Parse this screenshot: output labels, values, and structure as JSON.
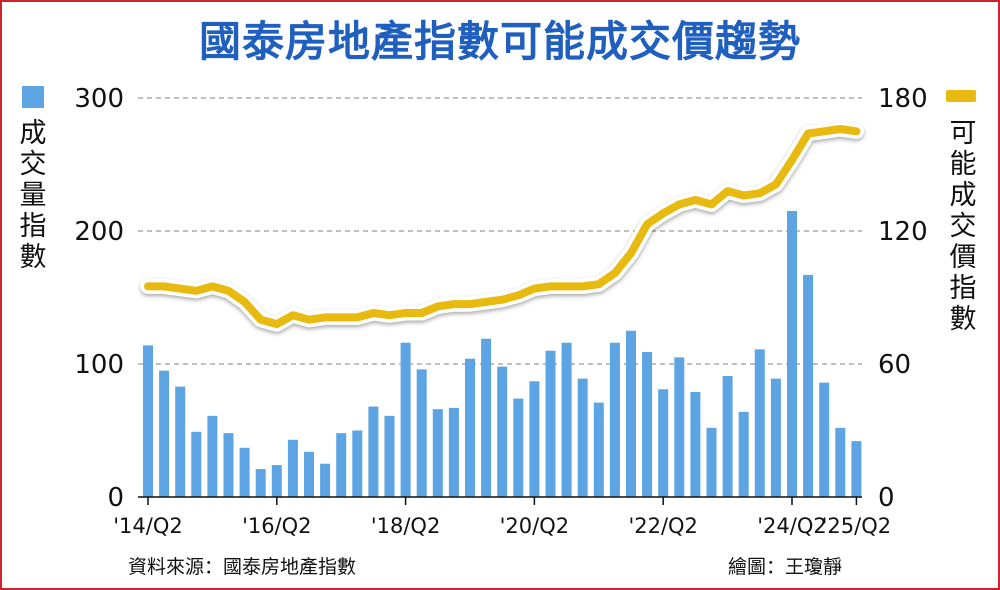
{
  "title": "國泰房地產指數可能成交價趨勢",
  "left_axis_label": "成交量指數",
  "right_axis_label": "可能成交價指數",
  "source_note": "資料來源：國泰房地產指數",
  "credit_note": "繪圖：王瓊靜",
  "colors": {
    "bar": "#5da4e3",
    "line": "#e8b90f",
    "title": "#1f5fbf",
    "grid": "#9a9a9a"
  },
  "chart_data": {
    "type": "bar",
    "series": [
      {
        "axis": "left",
        "type": "bar",
        "values": [
          114,
          95,
          83,
          49,
          61,
          48,
          37,
          21,
          24,
          43,
          34,
          25,
          48,
          50,
          68,
          61,
          116,
          96,
          66,
          67,
          104,
          119,
          98,
          74,
          87,
          110,
          116,
          89,
          71,
          116,
          125,
          109,
          81,
          105,
          79,
          52,
          91,
          64,
          111,
          89,
          215,
          167,
          86,
          52,
          42
        ]
      },
      {
        "axis": "right",
        "type": "line",
        "values": [
          95,
          95,
          94,
          93,
          95,
          93,
          88,
          80,
          78,
          82,
          80,
          81,
          81,
          81,
          83,
          82,
          83,
          83,
          86,
          87,
          87,
          88,
          89,
          91,
          94,
          95,
          95,
          95,
          96,
          101,
          110,
          123,
          128,
          132,
          134,
          132,
          138,
          136,
          137,
          141,
          152,
          164,
          165,
          166,
          165
        ]
      }
    ],
    "x_tick_labels": [
      "'14/Q2",
      "'16/Q2",
      "'18/Q2",
      "'20/Q2",
      "'22/Q2",
      "'24/Q2",
      "'25/Q2"
    ],
    "x_tick_indices": [
      0,
      8,
      16,
      24,
      32,
      40,
      44
    ],
    "left_axis": {
      "ticks": [
        0,
        100,
        200,
        300
      ],
      "ylim": [
        0,
        300
      ]
    },
    "right_axis": {
      "ticks": [
        0,
        60,
        120,
        180
      ],
      "ylim": [
        0,
        180
      ]
    },
    "grid": true
  }
}
